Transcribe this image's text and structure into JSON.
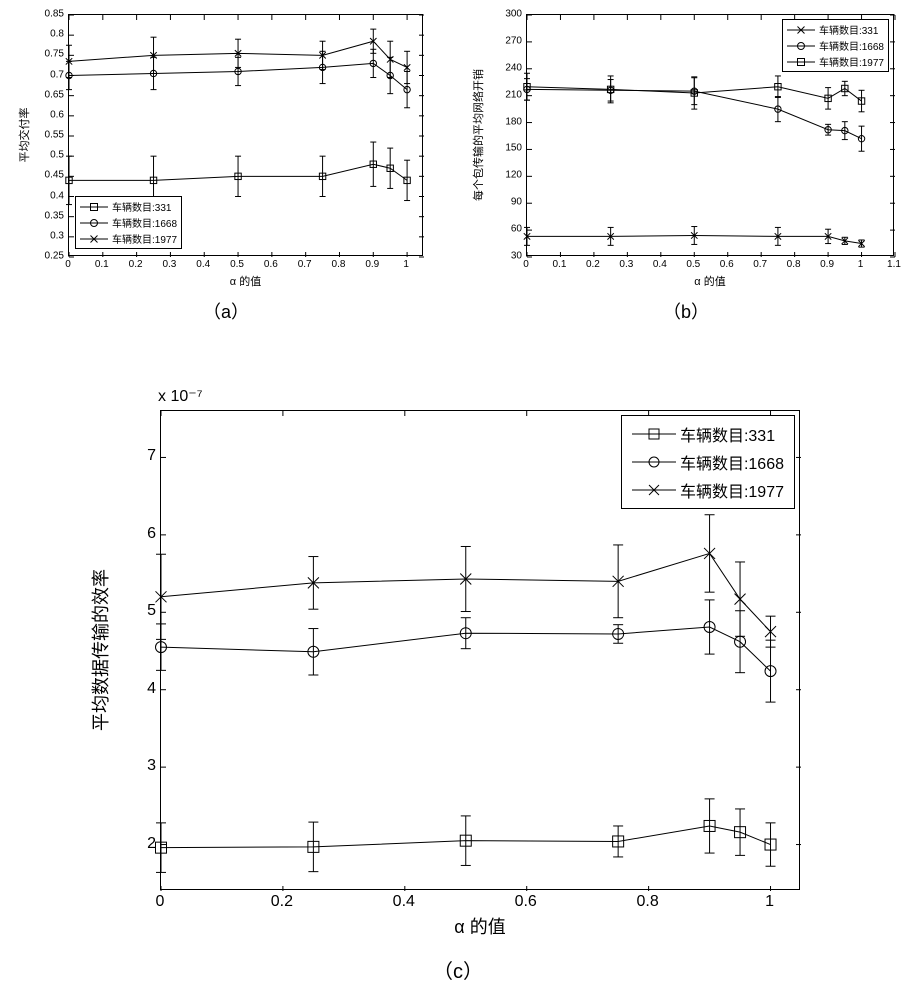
{
  "common": {
    "line_color": "#000000",
    "background_color": "#ffffff",
    "legend_prefix": "车辆数目:",
    "xlabel": "α 的值"
  },
  "chartA": {
    "title_label": "（a）",
    "ylabel": "平均交付率",
    "xlim": [
      0,
      1.05
    ],
    "ylim": [
      0.25,
      0.85
    ],
    "yticks": [
      0.25,
      0.3,
      0.35,
      0.4,
      0.45,
      0.5,
      0.55,
      0.6,
      0.65,
      0.7,
      0.75,
      0.8,
      0.85
    ],
    "xticks": [
      0,
      0.1,
      0.2,
      0.3,
      0.4,
      0.5,
      0.6,
      0.7,
      0.8,
      0.9,
      1
    ],
    "font_size_tick": 10,
    "font_size_label": 11,
    "font_size_legend": 10,
    "series": [
      {
        "num": "331",
        "marker": "square",
        "x": [
          0,
          0.25,
          0.5,
          0.75,
          0.9,
          0.95,
          1
        ],
        "y": [
          0.44,
          0.44,
          0.45,
          0.45,
          0.48,
          0.47,
          0.44
        ],
        "err": [
          0.06,
          0.06,
          0.05,
          0.05,
          0.055,
          0.05,
          0.05
        ]
      },
      {
        "num": "1668",
        "marker": "circle",
        "x": [
          0,
          0.25,
          0.5,
          0.75,
          0.9,
          0.95,
          1
        ],
        "y": [
          0.7,
          0.705,
          0.71,
          0.72,
          0.73,
          0.7,
          0.665
        ],
        "err": [
          0.035,
          0.04,
          0.035,
          0.04,
          0.035,
          0.045,
          0.045
        ]
      },
      {
        "num": "1977",
        "marker": "x",
        "x": [
          0,
          0.25,
          0.5,
          0.75,
          0.9,
          0.95,
          1
        ],
        "y": [
          0.735,
          0.75,
          0.755,
          0.75,
          0.785,
          0.74,
          0.72
        ],
        "err": [
          0.04,
          0.045,
          0.035,
          0.035,
          0.03,
          0.045,
          0.04
        ]
      }
    ],
    "legend_pos": "bottom-left"
  },
  "chartB": {
    "title_label": "（b）",
    "ylabel": "每个包传输的平均网络开销",
    "xlim": [
      0,
      1.1
    ],
    "ylim": [
      30,
      300
    ],
    "yticks": [
      30,
      60,
      90,
      120,
      150,
      180,
      210,
      240,
      270,
      300
    ],
    "xticks": [
      0,
      0.1,
      0.2,
      0.3,
      0.4,
      0.5,
      0.6,
      0.7,
      0.8,
      0.9,
      1,
      1.1
    ],
    "font_size_tick": 10,
    "font_size_label": 11,
    "font_size_legend": 10,
    "series": [
      {
        "num": "331",
        "marker": "x",
        "x": [
          0,
          0.25,
          0.5,
          0.75,
          0.9,
          0.95,
          1
        ],
        "y": [
          53,
          53,
          54,
          53,
          53,
          48,
          45
        ],
        "err": [
          10,
          10,
          10,
          10,
          8,
          4,
          4
        ]
      },
      {
        "num": "1668",
        "marker": "circle",
        "x": [
          0,
          0.25,
          0.5,
          0.75,
          0.9,
          0.95,
          1
        ],
        "y": [
          217,
          216,
          215,
          195,
          172,
          171,
          162
        ],
        "err": [
          12,
          12,
          15,
          14,
          6,
          10,
          14
        ]
      },
      {
        "num": "1977",
        "marker": "square",
        "x": [
          0,
          0.25,
          0.5,
          0.75,
          0.9,
          0.95,
          1
        ],
        "y": [
          220,
          217,
          213,
          220,
          207,
          218,
          204
        ],
        "err": [
          15,
          15,
          18,
          12,
          12,
          8,
          12
        ]
      }
    ],
    "legend_pos": "top-right"
  },
  "chartC": {
    "title_label": "（c）",
    "ylabel": "平均数据传输的效率",
    "exponent_label": "x 10⁻⁷",
    "xlim": [
      0,
      1.05
    ],
    "ylim": [
      1.4,
      7.6
    ],
    "yticks": [
      2,
      3,
      4,
      5,
      6,
      7
    ],
    "xticks": [
      0,
      0.2,
      0.4,
      0.6,
      0.8,
      1
    ],
    "font_size_tick": 16,
    "font_size_label": 18,
    "font_size_legend": 16,
    "series": [
      {
        "num": "331",
        "marker": "square",
        "x": [
          0,
          0.25,
          0.5,
          0.75,
          0.9,
          0.95,
          1
        ],
        "y": [
          1.96,
          1.97,
          2.05,
          2.04,
          2.24,
          2.16,
          2.0
        ],
        "err": [
          0.32,
          0.32,
          0.32,
          0.2,
          0.35,
          0.3,
          0.28
        ]
      },
      {
        "num": "1668",
        "marker": "circle",
        "x": [
          0,
          0.25,
          0.5,
          0.75,
          0.9,
          0.95,
          1
        ],
        "y": [
          4.55,
          4.49,
          4.73,
          4.72,
          4.81,
          4.62,
          4.24
        ],
        "err": [
          0.3,
          0.3,
          0.2,
          0.12,
          0.35,
          0.4,
          0.4
        ]
      },
      {
        "num": "1977",
        "marker": "x",
        "x": [
          0,
          0.25,
          0.5,
          0.75,
          0.9,
          0.95,
          1
        ],
        "y": [
          5.2,
          5.38,
          5.43,
          5.4,
          5.76,
          5.17,
          4.75
        ],
        "err": [
          0.55,
          0.34,
          0.42,
          0.47,
          0.5,
          0.48,
          0.2
        ]
      }
    ],
    "legend_pos": "top-right"
  }
}
